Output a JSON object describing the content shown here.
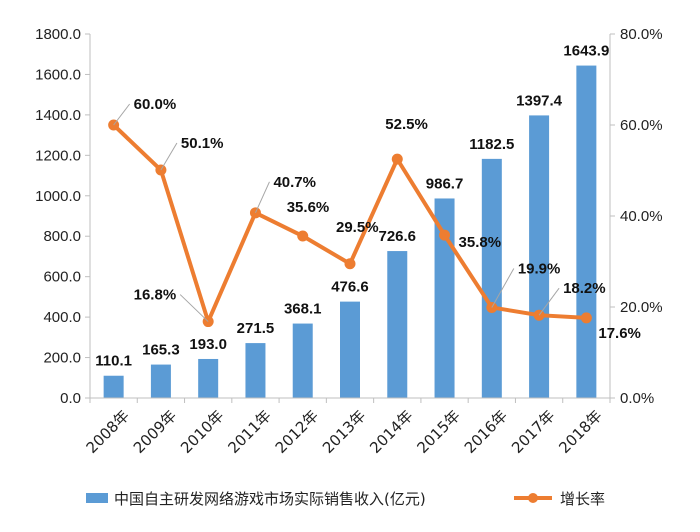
{
  "chart_data": {
    "type": "bar",
    "categories": [
      "2008年",
      "2009年",
      "2010年",
      "2011年",
      "2012年",
      "2013年",
      "2014年",
      "2015年",
      "2016年",
      "2017年",
      "2018年"
    ],
    "series": [
      {
        "name": "中国自主研发网络游戏市场实际销售收入(亿元)",
        "type": "bar",
        "axis": "left",
        "values": [
          110.1,
          165.3,
          193.0,
          271.5,
          368.1,
          476.6,
          726.6,
          986.7,
          1182.5,
          1397.4,
          1643.9
        ],
        "labels": [
          "110.1",
          "165.3",
          "193.0",
          "271.5",
          "368.1",
          "476.6",
          "726.6",
          "986.7",
          "1182.5",
          "1397.4",
          "1643.9"
        ],
        "color": "#5B9BD5"
      },
      {
        "name": "增长率",
        "type": "line",
        "axis": "right",
        "values": [
          60.0,
          50.1,
          16.8,
          40.7,
          35.6,
          29.5,
          52.5,
          35.8,
          19.9,
          18.2,
          17.6
        ],
        "labels": [
          "60.0%",
          "50.1%",
          "16.8%",
          "40.7%",
          "35.6%",
          "29.5%",
          "52.5%",
          "35.8%",
          "19.9%",
          "18.2%",
          "17.6%"
        ],
        "color": "#ED7D31"
      }
    ],
    "y_left": {
      "range": [
        0,
        1800
      ],
      "ticks": [
        0,
        200,
        400,
        600,
        800,
        1000,
        1200,
        1400,
        1600,
        1800
      ],
      "tick_labels": [
        "0.0",
        "200.0",
        "400.0",
        "600.0",
        "800.0",
        "1000.0",
        "1200.0",
        "1400.0",
        "1600.0",
        "1800.0"
      ]
    },
    "y_right": {
      "range": [
        0,
        80
      ],
      "ticks": [
        0,
        20,
        40,
        60,
        80
      ],
      "tick_labels": [
        "0.0%",
        "20.0%",
        "40.0%",
        "60.0%",
        "80.0%"
      ]
    },
    "title": "",
    "grid": false,
    "legend": "bottom"
  }
}
